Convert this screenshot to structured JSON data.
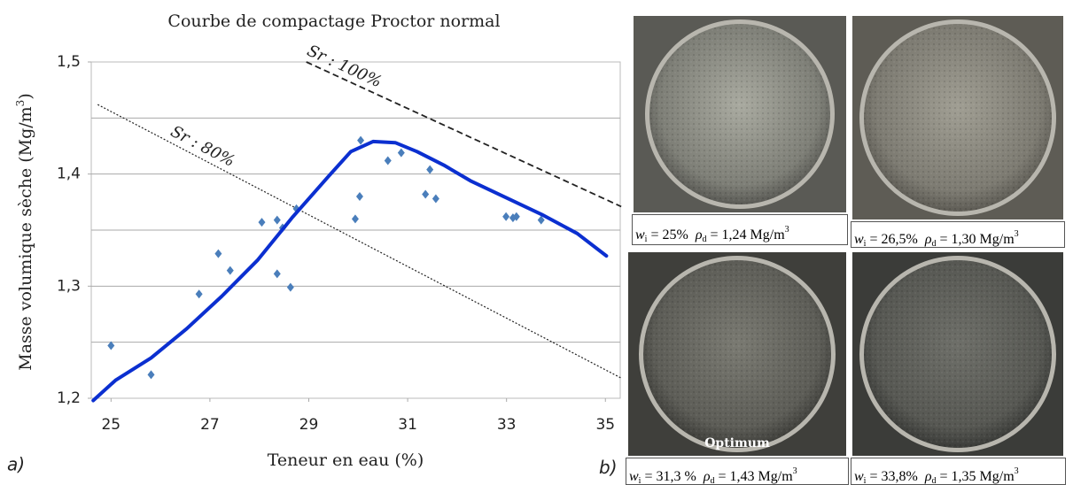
{
  "chart_data": {
    "type": "scatter",
    "title": "Courbe de compactage Proctor normal",
    "x_label": "Teneur en eau (%)",
    "y_label": {
      "text": "Masse volumique sèche (Mg/m",
      "sup": "3",
      "close": ")"
    },
    "xlim": [
      24.6,
      35.3
    ],
    "ylim": [
      1.2,
      1.5
    ],
    "xticks": [
      25,
      27,
      29,
      31,
      33,
      35
    ],
    "yticks": [
      {
        "value": 1.2,
        "label": "1,2"
      },
      {
        "value": 1.3,
        "label": "1,3"
      },
      {
        "value": 1.4,
        "label": "1,4"
      },
      {
        "value": 1.5,
        "label": "1,5"
      }
    ],
    "ygrid": [
      1.25,
      1.3,
      1.35,
      1.4,
      1.45
    ],
    "grid": true,
    "series": [
      {
        "type": "scatter",
        "color": "#4a7ebb",
        "x": [
          25.0,
          25.81,
          26.78,
          27.17,
          27.41,
          28.05,
          28.36,
          28.36,
          28.47,
          28.63,
          28.75,
          29.94,
          30.03,
          30.05,
          30.6,
          30.87,
          31.36,
          31.45,
          31.57,
          32.99,
          33.13,
          33.2,
          33.7
        ],
        "values": [
          1.247,
          1.221,
          1.293,
          1.329,
          1.314,
          1.357,
          1.359,
          1.311,
          1.352,
          1.299,
          1.369,
          1.36,
          1.38,
          1.43,
          1.412,
          1.419,
          1.382,
          1.404,
          1.378,
          1.362,
          1.361,
          1.362,
          1.359
        ]
      },
      {
        "type": "line",
        "color": "#0b2fd0",
        "x": [
          24.64,
          25.09,
          25.81,
          26.53,
          27.24,
          27.96,
          28.68,
          29.4,
          29.85,
          30.3,
          30.75,
          31.19,
          31.73,
          32.27,
          32.99,
          33.71,
          34.43,
          35.02
        ],
        "values": [
          1.198,
          1.216,
          1.236,
          1.262,
          1.291,
          1.323,
          1.362,
          1.398,
          1.42,
          1.429,
          1.428,
          1.42,
          1.408,
          1.394,
          1.379,
          1.364,
          1.347,
          1.327
        ]
      }
    ],
    "reference_lines": [
      {
        "label": "Sr : 100%",
        "style": "dashed",
        "x": [
          28.95,
          35.32
        ],
        "values": [
          1.5,
          1.371
        ]
      },
      {
        "label": "Sr : 80%",
        "style": "dotted",
        "x": [
          24.73,
          35.32
        ],
        "values": [
          1.462,
          1.218
        ]
      }
    ]
  },
  "figure_labels": {
    "a": "a)",
    "b": "b)"
  },
  "photos": [
    {
      "caption": {
        "w": "w",
        "w_sub": "i",
        "w_value": " = 25%",
        "rho": "ρ",
        "rho_sub": "d",
        "rho_value": " = 1,24 Mg/m",
        "sup": "3"
      }
    },
    {
      "caption": {
        "w": "w",
        "w_sub": "i",
        "w_value": " = 26,5%",
        "rho": "ρ",
        "rho_sub": "d",
        "rho_value": " = 1,30 Mg/m",
        "sup": "3"
      }
    },
    {
      "caption": {
        "w": "w",
        "w_sub": "i",
        "w_value": " = 31,3 %",
        "rho": "ρ",
        "rho_sub": "d",
        "rho_value": " = 1,43 Mg/m",
        "sup": "3"
      },
      "overlay": "Optimum"
    },
    {
      "caption": {
        "w": "w",
        "w_sub": "i",
        "w_value": " = 33,8%",
        "rho": "ρ",
        "rho_sub": "d",
        "rho_value": " = 1,35 Mg/m",
        "sup": "3"
      }
    }
  ]
}
